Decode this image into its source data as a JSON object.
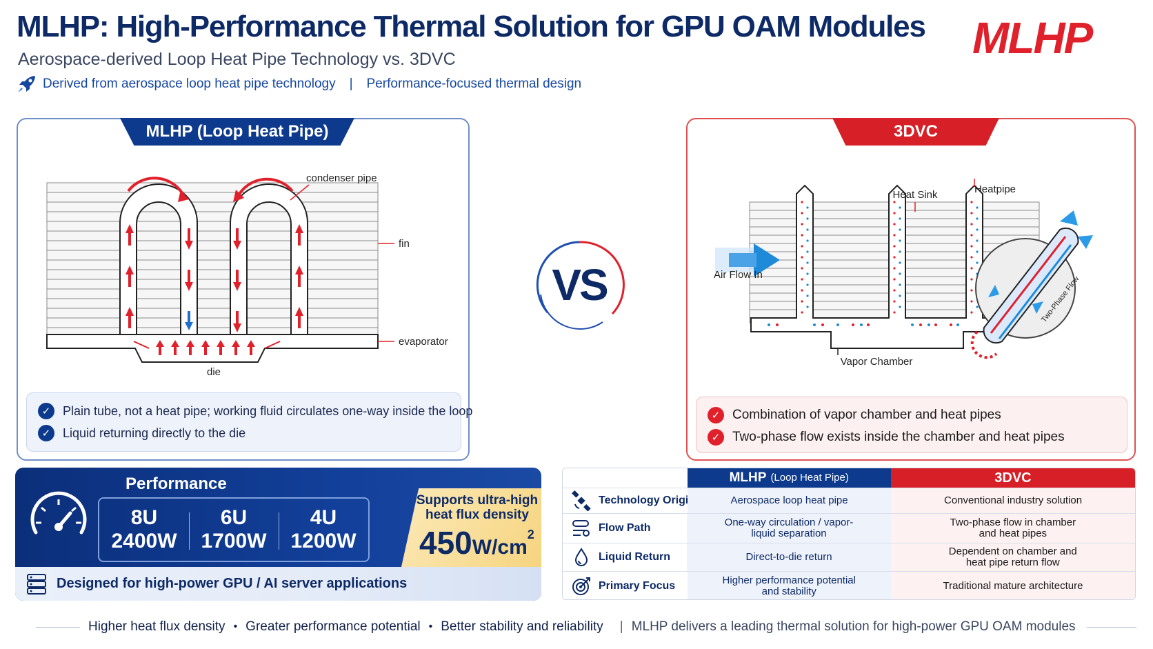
{
  "header": {
    "title": "MLHP:  High-Performance Thermal Solution for GPU OAM Modules",
    "subtitle": "Aerospace-derived Loop Heat Pipe Technology vs. 3DVC",
    "tagline_left": "Derived from aerospace loop heat pipe technology",
    "tagline_sep": "|",
    "tagline_right": "Performance-focused thermal design",
    "brand": "MLHP"
  },
  "left_panel": {
    "tab": "MLHP  (Loop Heat Pipe)",
    "labels": {
      "condenser": "condenser pipe",
      "fin": "fin",
      "evaporator": "evaporator",
      "die": "die"
    },
    "checks": [
      "Plain tube, not a heat pipe; working fluid circulates one-way inside the loop",
      "Liquid returning directly to the die"
    ]
  },
  "vs": "VS",
  "right_panel": {
    "tab": "3DVC",
    "labels": {
      "heat_sink": "Heat Sink",
      "heatpipe": "Heatpipe",
      "air_flow": "Air Flow In",
      "vapor_chamber": "Vapor Chamber",
      "two_phase": "Two-Phase Flow"
    },
    "checks": [
      "Combination of vapor chamber and heat pipes",
      "Two-phase flow exists inside the chamber and heat pipes"
    ]
  },
  "performance": {
    "title": "Performance",
    "items": [
      {
        "unit": "8U",
        "power": "2400W"
      },
      {
        "unit": "6U",
        "power": "1700W"
      },
      {
        "unit": "4U",
        "power": "1200W"
      }
    ],
    "flux_text": "Supports ultra-high heat flux density",
    "flux_number": "450",
    "flux_unit": "W/cm",
    "flux_exp": "2",
    "bottom": "Designed for high-power GPU / AI server applications"
  },
  "table": {
    "header_mlhp": "MLHP",
    "header_mlhp_sub": "(Loop Heat Pipe)",
    "header_dvc": "3DVC",
    "rows": [
      {
        "label": "Technology Origin",
        "mlhp": "Aerospace loop heat pipe",
        "dvc": "Conventional industry solution"
      },
      {
        "label": "Flow Path",
        "mlhp": "One-way circulation / vapor-liquid separation",
        "dvc": "Two-phase flow in chamber and heat pipes"
      },
      {
        "label": "Liquid Return",
        "mlhp": "Direct-to-die return",
        "dvc": "Dependent on chamber and heat pipe return flow"
      },
      {
        "label": "Primary Focus",
        "mlhp": "Higher performance potential and stability",
        "dvc": "Traditional mature architecture"
      }
    ]
  },
  "footer": {
    "items": [
      "Higher heat flux density",
      "Greater performance potential",
      "Better stability and reliability"
    ],
    "bullet": "•",
    "sep": "|",
    "statement": "MLHP delivers a leading thermal solution for high-power GPU OAM modules"
  },
  "colors": {
    "navy": "#0d3a8c",
    "red": "#d61f26",
    "gold": "#f6d47e"
  }
}
